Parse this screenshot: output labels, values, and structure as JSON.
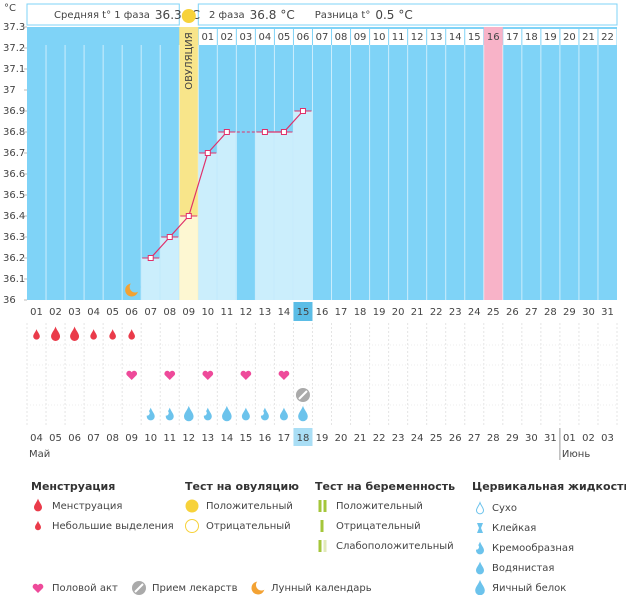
{
  "header": {
    "phase1_label": "Средняя t° 1 фаза",
    "phase1_value": 36.3,
    "unit": "°C",
    "phase2_label": "2 фаза",
    "phase2_value": 36.8,
    "diff_label": "Разница t°",
    "diff_value": 0.5
  },
  "chart_data": {
    "type": "bar",
    "y_label": "°C",
    "categories": [
      "01",
      "02",
      "03",
      "04",
      "05",
      "06",
      "07",
      "08",
      "09",
      "10",
      "11",
      "12",
      "13",
      "14",
      "15",
      "16",
      "17",
      "18",
      "19",
      "20",
      "21",
      "22",
      "23",
      "24",
      "25",
      "26",
      "27",
      "28",
      "29",
      "30",
      "31"
    ],
    "values": [
      null,
      null,
      null,
      null,
      null,
      null,
      36.2,
      36.3,
      36.4,
      36.7,
      36.8,
      null,
      36.8,
      36.8,
      36.9,
      null,
      null,
      null,
      null,
      null,
      null,
      null,
      null,
      null,
      null,
      null,
      null,
      null,
      null,
      null,
      null
    ],
    "ylim": [
      36,
      37.3
    ],
    "yticks": [
      36,
      36.1,
      36.2,
      36.3,
      36.4,
      36.5,
      36.6,
      36.7,
      36.8,
      36.9,
      37,
      37.1,
      37.2,
      37.3
    ],
    "ovulation_day": "09",
    "ovulation_label": "ОВУЛЯЦИЯ",
    "post_ovulation_days": [
      "01",
      "02",
      "03",
      "04",
      "05",
      "06",
      "07",
      "08",
      "09",
      "10",
      "11",
      "12",
      "13",
      "14",
      "15",
      "16",
      "17",
      "18",
      "19",
      "20",
      "21",
      "22"
    ],
    "expected_period_day": "25",
    "today": "15",
    "menstruation": [
      {
        "day": "01",
        "kind": 1
      },
      {
        "day": "02",
        "kind": 0
      },
      {
        "day": "03",
        "kind": 0
      },
      {
        "day": "04",
        "kind": 1
      },
      {
        "day": "05",
        "kind": 1
      },
      {
        "day": "06",
        "kind": 1
      }
    ],
    "intercourse_days": [
      "06",
      "08",
      "10",
      "12",
      "14"
    ],
    "medication_days": [
      "15"
    ],
    "moon_days": [
      "06"
    ],
    "cervical_fluid": [
      {
        "day": "07",
        "kind": 2
      },
      {
        "day": "08",
        "kind": 2
      },
      {
        "day": "09",
        "kind": 4
      },
      {
        "day": "10",
        "kind": 2
      },
      {
        "day": "11",
        "kind": 4
      },
      {
        "day": "12",
        "kind": 3
      },
      {
        "day": "13",
        "kind": 2
      },
      {
        "day": "14",
        "kind": 3
      },
      {
        "day": "15",
        "kind": 4
      }
    ],
    "dates": [
      "04",
      "05",
      "06",
      "07",
      "08",
      "09",
      "10",
      "11",
      "12",
      "13",
      "14",
      "15",
      "16",
      "17",
      "18",
      "19",
      "20",
      "21",
      "22",
      "23",
      "24",
      "25",
      "26",
      "27",
      "28",
      "29",
      "30",
      "31",
      "01",
      "02",
      "03"
    ],
    "weekend": [
      false,
      false,
      true,
      true,
      false,
      false,
      false,
      false,
      false,
      true,
      true,
      false,
      false,
      false,
      false,
      false,
      true,
      true,
      false,
      false,
      false,
      false,
      false,
      true,
      true,
      false,
      false,
      false,
      false,
      false,
      true
    ],
    "months": [
      {
        "label": "Май",
        "day": "01"
      },
      {
        "label": "Июнь",
        "day": "29"
      }
    ]
  },
  "legend": {
    "menstruation": {
      "title": "Менструация",
      "items": [
        "Менструация",
        "Небольшие выделения"
      ]
    },
    "ovulation_test": {
      "title": "Тест на овуляцию",
      "items": [
        "Положительный",
        "Отрицательный"
      ]
    },
    "pregnancy_test": {
      "title": "Тест на беременность",
      "items": [
        "Положительный",
        "Отрицательный",
        "Слабоположительный"
      ]
    },
    "cervical_fluid": {
      "title": "Цервикальная жидкость",
      "items": [
        "Сухо",
        "Клейкая",
        "Кремообразная",
        "Водянистая",
        "Яичный белок"
      ]
    },
    "other": [
      "Половой акт",
      "Прием лекарств",
      "Лунный календарь"
    ]
  }
}
